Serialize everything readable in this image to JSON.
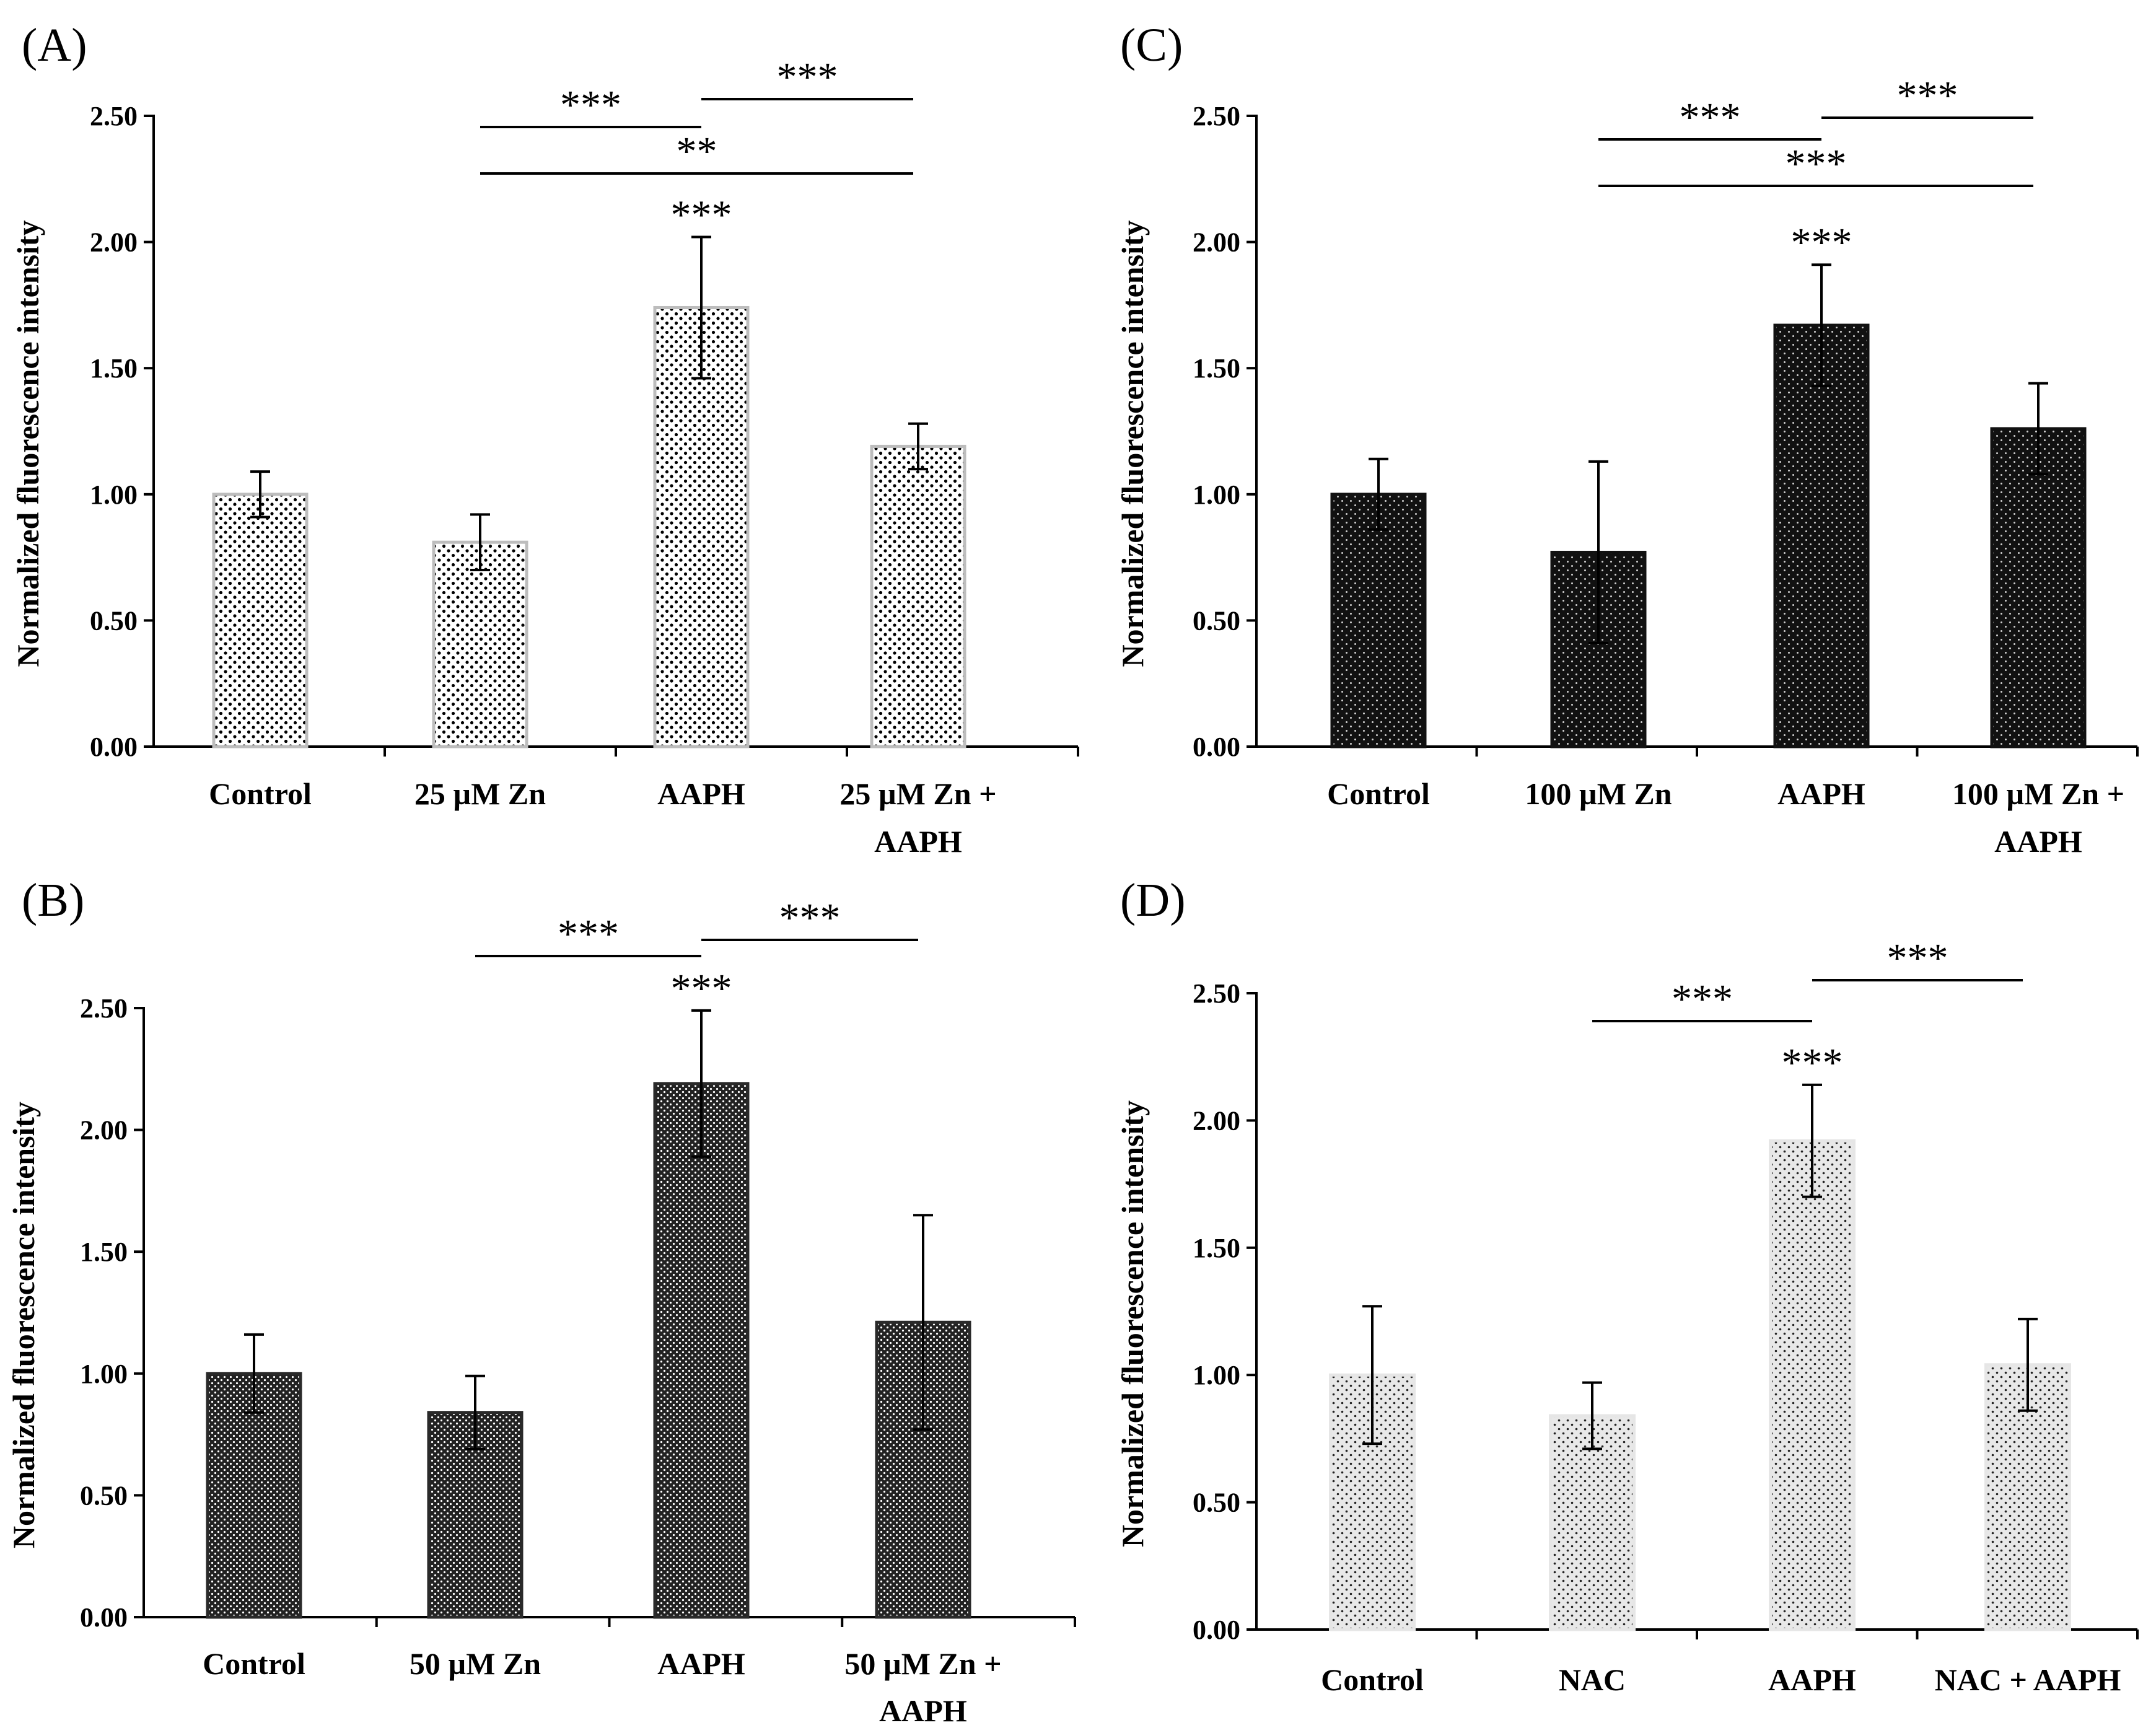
{
  "chart_data": [
    {
      "panel": "(A)",
      "type": "bar",
      "ylabel": "Normalized fluorescence intensity",
      "ylim": [
        0,
        2.5
      ],
      "yticks": [
        "0.00",
        "0.50",
        "1.00",
        "1.50",
        "2.00",
        "2.50"
      ],
      "categories": [
        [
          "Control"
        ],
        [
          "25 µM Zn"
        ],
        [
          "AAPH"
        ],
        [
          "25 µM Zn +",
          "AAPH"
        ]
      ],
      "values": [
        1.0,
        0.81,
        1.74,
        1.19
      ],
      "errors": [
        0.09,
        0.11,
        0.28,
        0.09
      ],
      "bar_star": [
        null,
        null,
        "***",
        null
      ],
      "comparisons": [
        {
          "from": 1,
          "to": 2,
          "label": "***"
        },
        {
          "from": 2,
          "to": 3,
          "label": "***"
        },
        {
          "from": 1,
          "to": 3,
          "label": "**"
        }
      ],
      "fill": "sparse-dots",
      "bar_color": "#ffffff",
      "bar_stroke": "#bdbdbd"
    },
    {
      "panel": "(B)",
      "type": "bar",
      "ylabel": "Normalized fluorescence intensity",
      "ylim": [
        0,
        2.5
      ],
      "yticks": [
        "0.00",
        "0.50",
        "1.00",
        "1.50",
        "2.00",
        "2.50"
      ],
      "categories": [
        [
          "Control"
        ],
        [
          "50 µM Zn"
        ],
        [
          "AAPH"
        ],
        [
          "50 µM Zn +",
          "AAPH"
        ]
      ],
      "values": [
        1.0,
        0.84,
        2.19,
        1.21
      ],
      "errors": [
        0.16,
        0.15,
        0.3,
        0.44
      ],
      "bar_star": [
        null,
        null,
        "***",
        null
      ],
      "comparisons": [
        {
          "from": 1,
          "to": 2,
          "label": "***"
        },
        {
          "from": 2,
          "to": 3,
          "label": "***"
        }
      ],
      "fill": "dense-dark",
      "bar_color": "#2a2a2a",
      "bar_stroke": "#2a2a2a"
    },
    {
      "panel": "(C)",
      "type": "bar",
      "ylabel": "Normalized fluorescence intensity",
      "ylim": [
        0,
        2.5
      ],
      "yticks": [
        "0.00",
        "0.50",
        "1.00",
        "1.50",
        "2.00",
        "2.50"
      ],
      "categories": [
        [
          "Control"
        ],
        [
          "100 µM Zn"
        ],
        [
          "AAPH"
        ],
        [
          "100 µM Zn +",
          "AAPH"
        ]
      ],
      "values": [
        1.0,
        0.77,
        1.67,
        1.26
      ],
      "errors": [
        0.14,
        0.36,
        0.24,
        0.18
      ],
      "bar_star": [
        null,
        null,
        "***",
        null
      ],
      "comparisons": [
        {
          "from": 1,
          "to": 2,
          "label": "***"
        },
        {
          "from": 2,
          "to": 3,
          "label": "***"
        },
        {
          "from": 1,
          "to": 3,
          "label": "***"
        }
      ],
      "fill": "dark-dots",
      "bar_color": "#111111",
      "bar_stroke": "#111111"
    },
    {
      "panel": "(D)",
      "type": "bar",
      "ylabel": "Normalized fluorescence intensity",
      "ylim": [
        0,
        2.5
      ],
      "yticks": [
        "0.00",
        "0.50",
        "1.00",
        "1.50",
        "2.00",
        "2.50"
      ],
      "categories": [
        [
          "Control"
        ],
        [
          "NAC"
        ],
        [
          "AAPH"
        ],
        [
          "NAC + AAPH"
        ]
      ],
      "values": [
        1.0,
        0.84,
        1.92,
        1.04
      ],
      "errors": [
        0.27,
        0.13,
        0.22,
        0.18
      ],
      "bar_star": [
        null,
        null,
        "***",
        null
      ],
      "comparisons": [
        {
          "from": 1,
          "to": 2,
          "label": "***"
        },
        {
          "from": 2,
          "to": 3,
          "label": "***"
        }
      ],
      "fill": "gray-dots",
      "bar_color": "#e6e6e6",
      "bar_stroke": "#e6e6e6"
    }
  ]
}
